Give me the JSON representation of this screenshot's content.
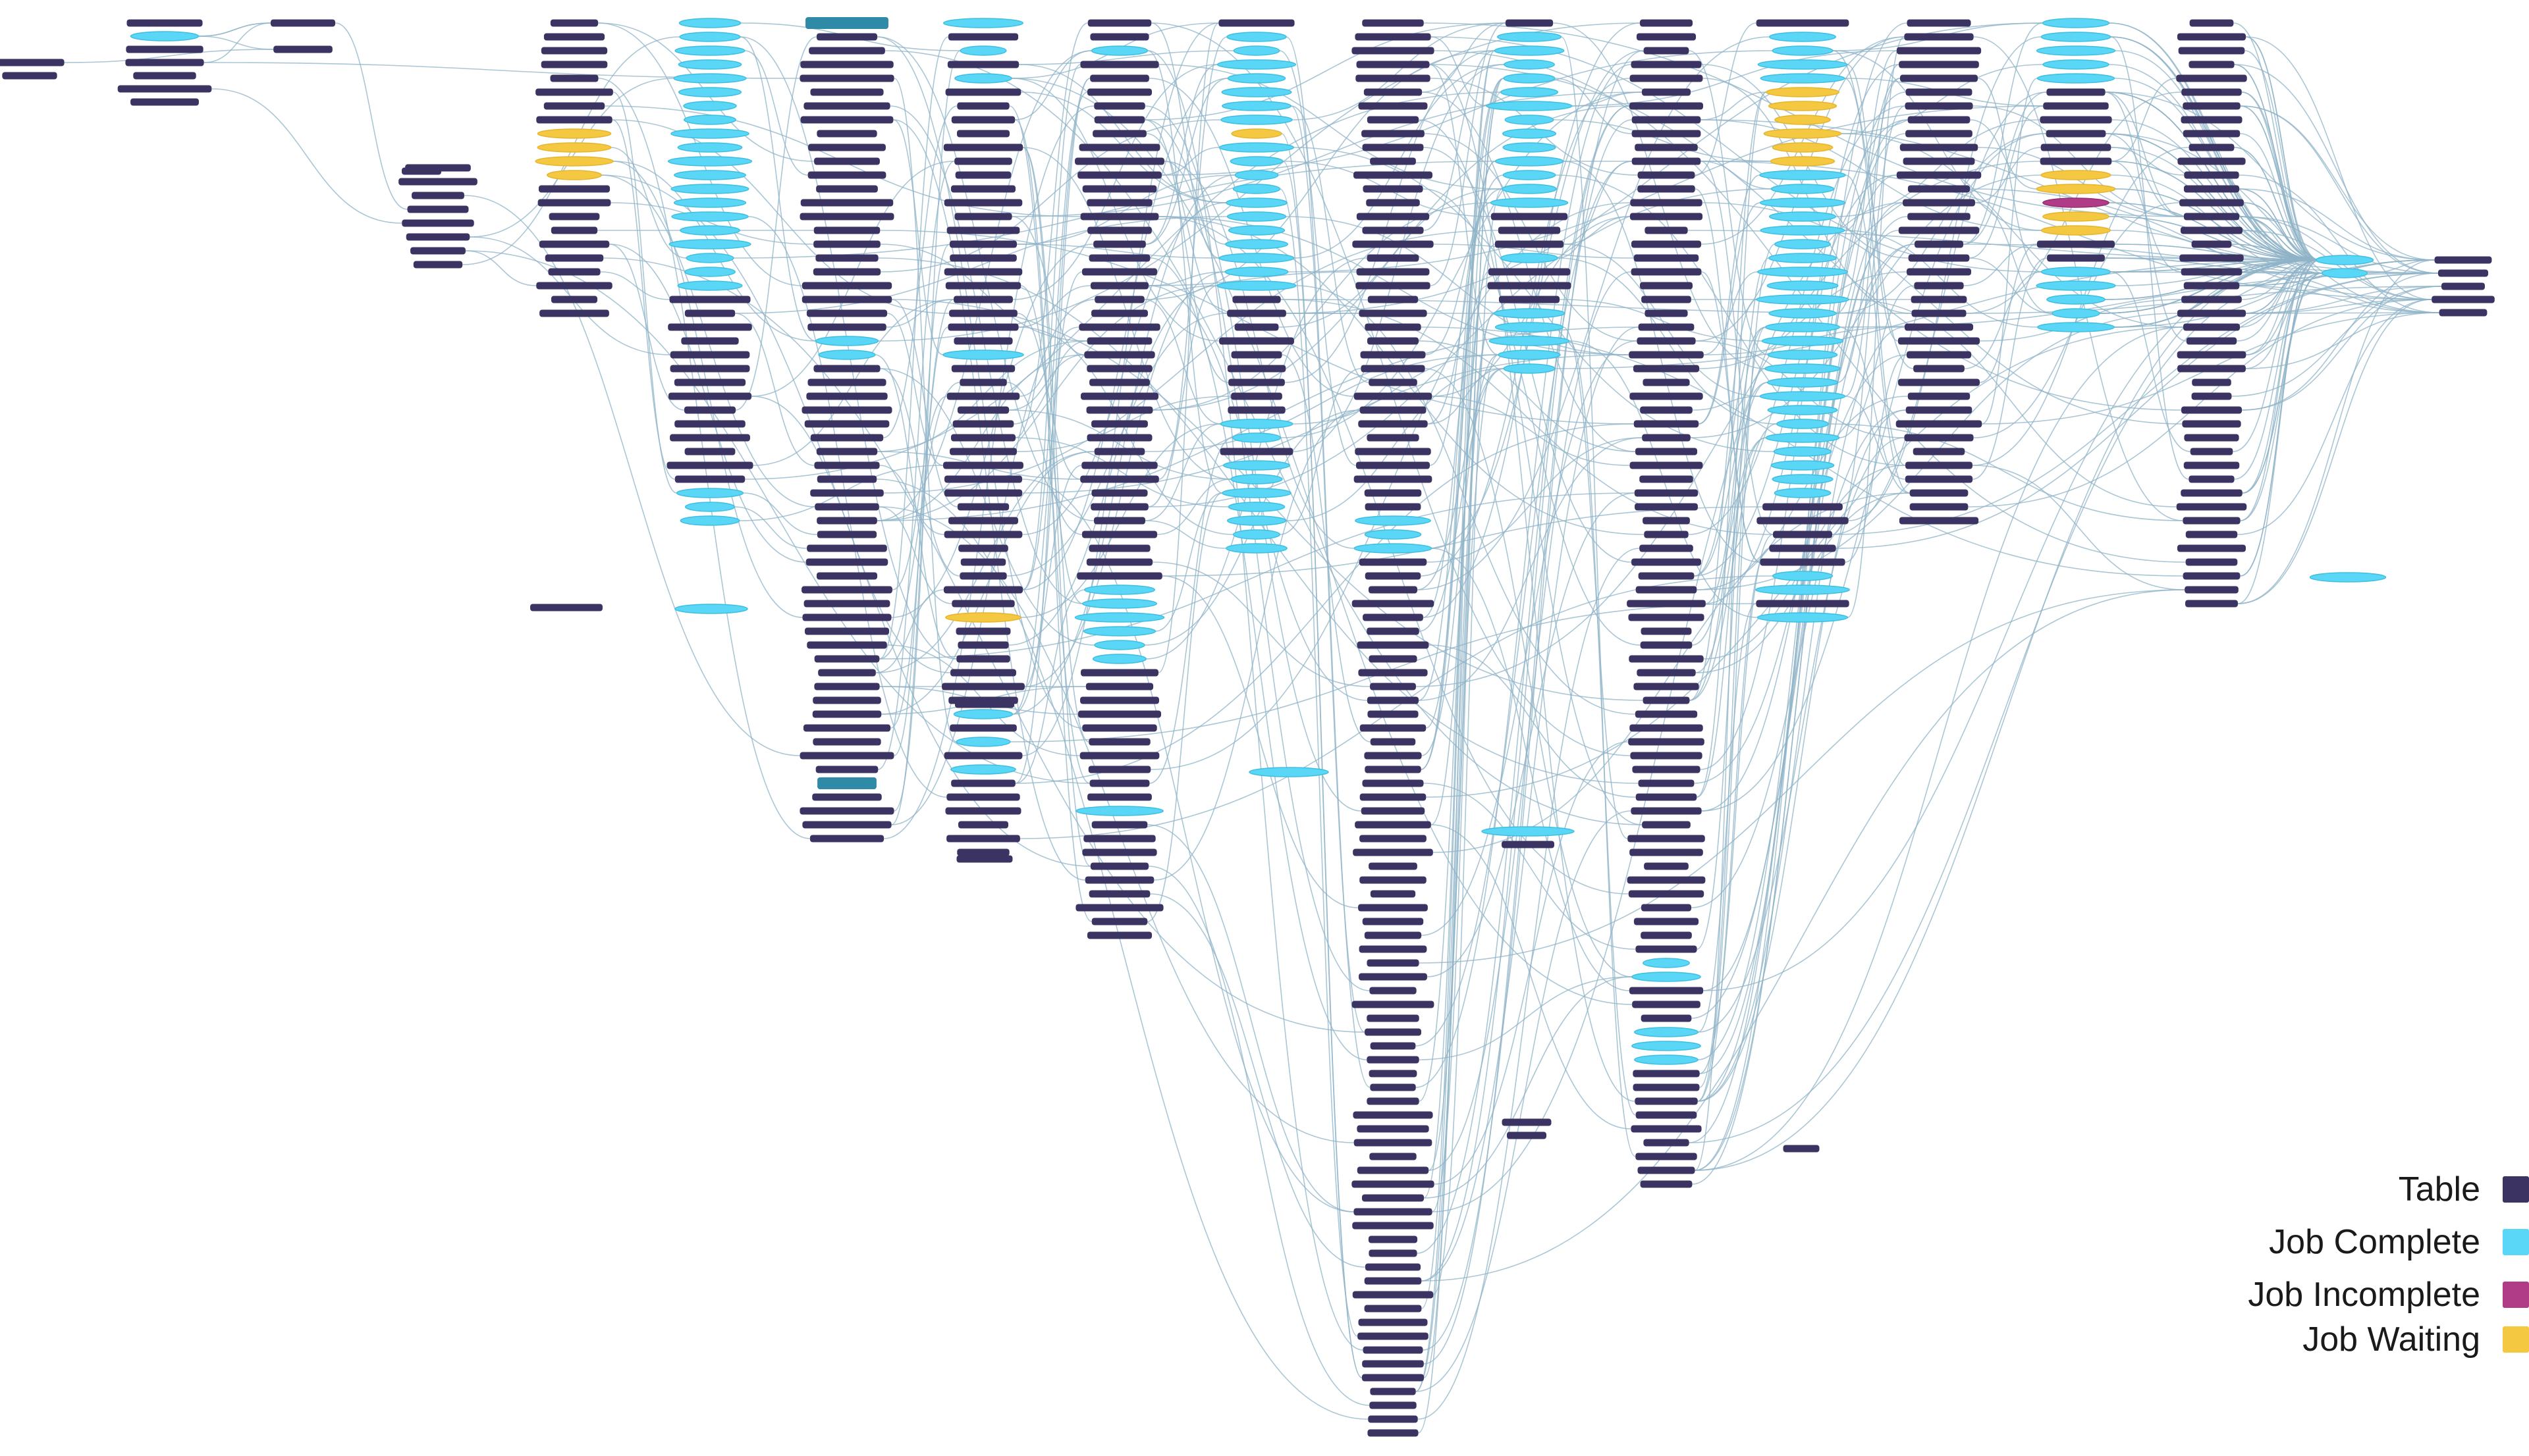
{
  "colors": {
    "table": "#3b3362",
    "job_complete": "#5ad6f7",
    "job_incomplete": "#b03c88",
    "job_waiting": "#f5c842",
    "selected": "#2f8aa8",
    "edge": "#8fb3c7"
  },
  "legend": {
    "items": [
      {
        "key": "table",
        "label": "Table",
        "color": "#3b3362"
      },
      {
        "key": "job_complete",
        "label": "Job Complete",
        "color": "#5ad6f7"
      },
      {
        "key": "job_incomplete",
        "label": "Job Incomplete",
        "color": "#b03c88"
      },
      {
        "key": "job_waiting",
        "label": "Job Waiting",
        "color": "#f5c842"
      }
    ]
  }
}
